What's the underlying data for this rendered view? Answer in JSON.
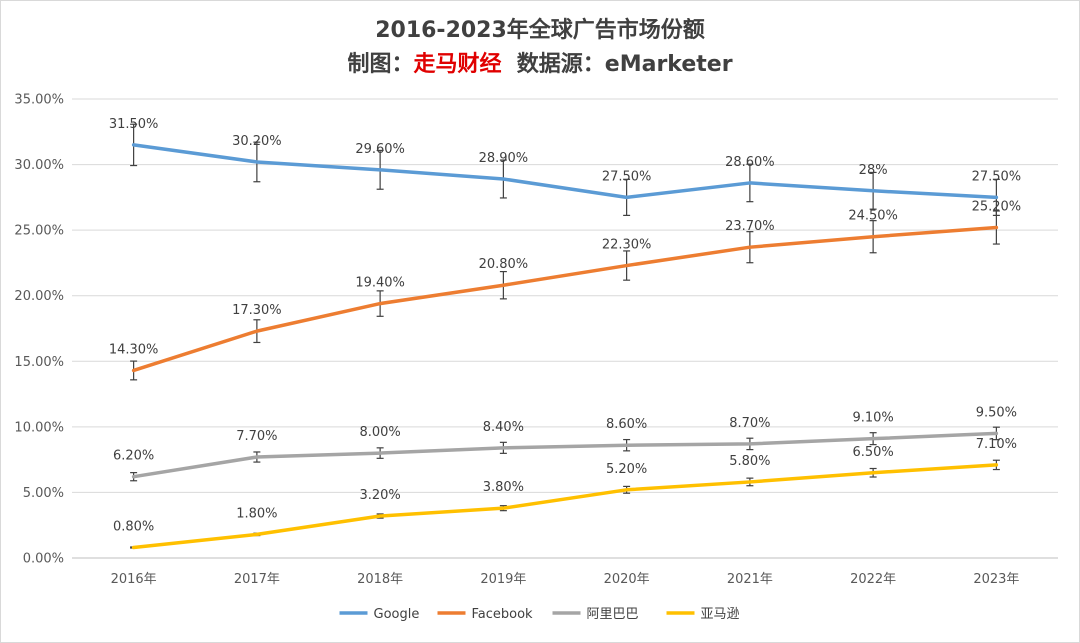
{
  "title": {
    "line1": "2016-2023年全球广告市场份额",
    "prefix": "制图：",
    "brand": "走马财经",
    "source": "数据源：eMarketer"
  },
  "chart_data": {
    "type": "line",
    "title": "2016-2023年全球广告市场份额",
    "xlabel": "",
    "ylabel": "",
    "categories": [
      "2016年",
      "2017年",
      "2018年",
      "2019年",
      "2020年",
      "2021年",
      "2022年",
      "2023年"
    ],
    "ylim": [
      0,
      35
    ],
    "yticks": [
      0,
      5,
      10,
      15,
      20,
      25,
      30,
      35
    ],
    "ytick_labels": [
      "0.00%",
      "5.00%",
      "10.00%",
      "15.00%",
      "20.00%",
      "25.00%",
      "30.00%",
      "35.00%"
    ],
    "grid": true,
    "legend": "bottom",
    "error_bar_percent": 5,
    "series": [
      {
        "name": "Google",
        "color": "#5b9bd5",
        "values": [
          31.5,
          30.2,
          29.6,
          28.9,
          27.5,
          28.6,
          28.0,
          27.5
        ],
        "labels": [
          "31.50%",
          "30.20%",
          "29.60%",
          "28.90%",
          "27.50%",
          "28.60%",
          "28%",
          "27.50%"
        ]
      },
      {
        "name": "Facebook",
        "color": "#ed7d31",
        "values": [
          14.3,
          17.3,
          19.4,
          20.8,
          22.3,
          23.7,
          24.5,
          25.2
        ],
        "labels": [
          "14.30%",
          "17.30%",
          "19.40%",
          "20.80%",
          "22.30%",
          "23.70%",
          "24.50%",
          "25.20%"
        ]
      },
      {
        "name": "阿里巴巴",
        "color": "#a5a5a5",
        "values": [
          6.2,
          7.7,
          8.0,
          8.4,
          8.6,
          8.7,
          9.1,
          9.5
        ],
        "labels": [
          "6.20%",
          "7.70%",
          "8.00%",
          "8.40%",
          "8.60%",
          "8.70%",
          "9.10%",
          "9.50%"
        ]
      },
      {
        "name": "亚马逊",
        "color": "#ffc000",
        "values": [
          0.8,
          1.8,
          3.2,
          3.8,
          5.2,
          5.8,
          6.5,
          7.1
        ],
        "labels": [
          "0.80%",
          "1.80%",
          "3.20%",
          "3.80%",
          "5.20%",
          "5.80%",
          "6.50%",
          "7.10%"
        ]
      }
    ]
  }
}
